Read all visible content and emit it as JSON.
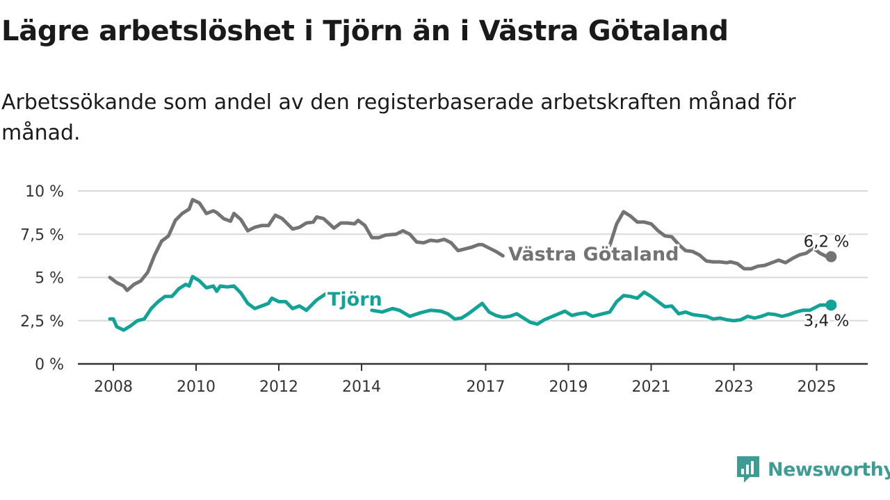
{
  "colors": {
    "regional": "#737373",
    "local": "#13a396",
    "grid": "#d9d9d9",
    "axis": "#333333",
    "brand": "#3f9c94"
  },
  "brand": {
    "name": "Newsworthy",
    "icon": "newsworthy-logo-icon"
  },
  "chart_data": {
    "type": "line",
    "title": "Lägre arbetslöshet i Tjörn än i Västra Götaland",
    "subtitle": "Arbetssökande som andel av den registerbaserade arbetskraften månad för månad.",
    "ylim": [
      0,
      10
    ],
    "xlim": [
      "2008-01",
      "2025-12"
    ],
    "yticks": [
      {
        "value": 0,
        "label": "0 %"
      },
      {
        "value": 2.5,
        "label": "2,5 %"
      },
      {
        "value": 5,
        "label": "5 %"
      },
      {
        "value": 7.5,
        "label": "7,5 %"
      },
      {
        "value": 10,
        "label": "10 %"
      }
    ],
    "xticks": [
      {
        "value": "2008-01",
        "label": "2008"
      },
      {
        "value": "2010-01",
        "label": "2010"
      },
      {
        "value": "2012-01",
        "label": "2012"
      },
      {
        "value": "2014-01",
        "label": "2014"
      },
      {
        "value": "2017-01",
        "label": "2017"
      },
      {
        "value": "2019-01",
        "label": "2019"
      },
      {
        "value": "2021-01",
        "label": "2021"
      },
      {
        "value": "2023-01",
        "label": "2023"
      },
      {
        "value": "2025-01",
        "label": "2025"
      }
    ],
    "grid": "horizontal",
    "series": [
      {
        "name": "Västra Götaland",
        "key": "regional",
        "end_label": "6,2 %",
        "end_value": 6.2,
        "points": [
          [
            "2008-01",
            5.0
          ],
          [
            "2008-03",
            4.7
          ],
          [
            "2008-05",
            4.5
          ],
          [
            "2008-06",
            4.25
          ],
          [
            "2008-08",
            4.6
          ],
          [
            "2008-10",
            4.8
          ],
          [
            "2008-12",
            5.3
          ],
          [
            "2009-02",
            6.3
          ],
          [
            "2009-04",
            7.1
          ],
          [
            "2009-06",
            7.4
          ],
          [
            "2009-08",
            8.3
          ],
          [
            "2009-10",
            8.7
          ],
          [
            "2009-12",
            8.95
          ],
          [
            "2010-01",
            9.5
          ],
          [
            "2010-03",
            9.3
          ],
          [
            "2010-05",
            8.7
          ],
          [
            "2010-07",
            8.85
          ],
          [
            "2010-08",
            8.75
          ],
          [
            "2010-10",
            8.4
          ],
          [
            "2010-12",
            8.25
          ],
          [
            "2011-01",
            8.7
          ],
          [
            "2011-03",
            8.35
          ],
          [
            "2011-05",
            7.7
          ],
          [
            "2011-07",
            7.9
          ],
          [
            "2011-09",
            8.0
          ],
          [
            "2011-11",
            8.0
          ],
          [
            "2012-01",
            8.6
          ],
          [
            "2012-03",
            8.4
          ],
          [
            "2012-06",
            7.8
          ],
          [
            "2012-08",
            7.9
          ],
          [
            "2012-10",
            8.15
          ],
          [
            "2012-12",
            8.2
          ],
          [
            "2013-01",
            8.5
          ],
          [
            "2013-03",
            8.4
          ],
          [
            "2013-06",
            7.85
          ],
          [
            "2013-08",
            8.15
          ],
          [
            "2013-10",
            8.15
          ],
          [
            "2013-12",
            8.1
          ],
          [
            "2014-01",
            8.3
          ],
          [
            "2014-03",
            8.0
          ],
          [
            "2014-05",
            7.3
          ],
          [
            "2014-07",
            7.3
          ],
          [
            "2014-09",
            7.45
          ],
          [
            "2014-12",
            7.5
          ],
          [
            "2015-02",
            7.7
          ],
          [
            "2015-04",
            7.5
          ],
          [
            "2015-06",
            7.05
          ],
          [
            "2015-08",
            7.0
          ],
          [
            "2015-10",
            7.15
          ],
          [
            "2015-12",
            7.1
          ],
          [
            "2016-02",
            7.2
          ],
          [
            "2016-04",
            7.0
          ],
          [
            "2016-06",
            6.55
          ],
          [
            "2016-08",
            6.65
          ],
          [
            "2016-10",
            6.75
          ],
          [
            "2016-12",
            6.9
          ],
          [
            "2017-01",
            6.9
          ],
          [
            "2017-03",
            6.7
          ],
          [
            "2017-05",
            6.5
          ],
          [
            "2017-07",
            6.25
          ],
          null,
          [
            "2020-02",
            6.85
          ],
          [
            "2020-04",
            8.1
          ],
          [
            "2020-06",
            8.8
          ],
          [
            "2020-08",
            8.55
          ],
          [
            "2020-10",
            8.2
          ],
          [
            "2020-12",
            8.2
          ],
          [
            "2021-02",
            8.1
          ],
          [
            "2021-04",
            7.7
          ],
          [
            "2021-06",
            7.4
          ],
          [
            "2021-08",
            7.35
          ],
          [
            "2021-10",
            6.9
          ],
          [
            "2021-12",
            6.55
          ],
          [
            "2022-02",
            6.5
          ],
          [
            "2022-04",
            6.3
          ],
          [
            "2022-06",
            5.95
          ],
          [
            "2022-08",
            5.9
          ],
          [
            "2022-10",
            5.9
          ],
          [
            "2022-12",
            5.85
          ],
          [
            "2023-01",
            5.9
          ],
          [
            "2023-03",
            5.8
          ],
          [
            "2023-05",
            5.5
          ],
          [
            "2023-07",
            5.5
          ],
          [
            "2023-09",
            5.65
          ],
          [
            "2023-11",
            5.7
          ],
          [
            "2024-01",
            5.85
          ],
          [
            "2024-03",
            6.0
          ],
          [
            "2024-05",
            5.85
          ],
          [
            "2024-07",
            6.1
          ],
          [
            "2024-09",
            6.3
          ],
          [
            "2024-11",
            6.4
          ],
          [
            "2025-01",
            6.7
          ],
          [
            "2025-03",
            6.4
          ],
          [
            "2025-05",
            6.2
          ]
        ]
      },
      {
        "name": "Tjörn",
        "key": "local",
        "end_label": "3,4 %",
        "end_value": 3.4,
        "points": [
          [
            "2008-01",
            2.6
          ],
          [
            "2008-02",
            2.6
          ],
          [
            "2008-03",
            2.15
          ],
          [
            "2008-05",
            1.95
          ],
          [
            "2008-07",
            2.2
          ],
          [
            "2008-09",
            2.5
          ],
          [
            "2008-11",
            2.6
          ],
          [
            "2009-01",
            3.2
          ],
          [
            "2009-03",
            3.6
          ],
          [
            "2009-05",
            3.9
          ],
          [
            "2009-07",
            3.9
          ],
          [
            "2009-09",
            4.35
          ],
          [
            "2009-11",
            4.6
          ],
          [
            "2009-12",
            4.5
          ],
          [
            "2010-01",
            5.05
          ],
          [
            "2010-03",
            4.8
          ],
          [
            "2010-05",
            4.4
          ],
          [
            "2010-07",
            4.5
          ],
          [
            "2010-08",
            4.2
          ],
          [
            "2010-09",
            4.5
          ],
          [
            "2010-11",
            4.45
          ],
          [
            "2011-01",
            4.5
          ],
          [
            "2011-03",
            4.1
          ],
          [
            "2011-05",
            3.5
          ],
          [
            "2011-07",
            3.2
          ],
          [
            "2011-09",
            3.35
          ],
          [
            "2011-11",
            3.5
          ],
          [
            "2011-12",
            3.8
          ],
          [
            "2012-02",
            3.6
          ],
          [
            "2012-04",
            3.6
          ],
          [
            "2012-06",
            3.2
          ],
          [
            "2012-08",
            3.35
          ],
          [
            "2012-10",
            3.1
          ],
          [
            "2013-01",
            3.7
          ],
          [
            "2013-04",
            4.1
          ],
          null,
          [
            "2014-05",
            3.1
          ],
          [
            "2014-08",
            3.0
          ],
          [
            "2014-11",
            3.2
          ],
          [
            "2015-01",
            3.1
          ],
          [
            "2015-04",
            2.75
          ],
          [
            "2015-07",
            2.95
          ],
          [
            "2015-10",
            3.1
          ],
          [
            "2016-01",
            3.05
          ],
          [
            "2016-03",
            2.9
          ],
          [
            "2016-05",
            2.6
          ],
          [
            "2016-07",
            2.65
          ],
          [
            "2016-09",
            2.9
          ],
          [
            "2016-12",
            3.35
          ],
          [
            "2017-01",
            3.5
          ],
          [
            "2017-03",
            3.0
          ],
          [
            "2017-05",
            2.8
          ],
          [
            "2017-07",
            2.7
          ],
          [
            "2017-09",
            2.75
          ],
          [
            "2017-11",
            2.9
          ],
          [
            "2018-01",
            2.65
          ],
          [
            "2018-03",
            2.4
          ],
          [
            "2018-05",
            2.3
          ],
          [
            "2018-07",
            2.55
          ],
          [
            "2018-10",
            2.8
          ],
          [
            "2019-01",
            3.05
          ],
          [
            "2019-03",
            2.8
          ],
          [
            "2019-05",
            2.9
          ],
          [
            "2019-07",
            2.95
          ],
          [
            "2019-09",
            2.75
          ],
          [
            "2019-12",
            2.9
          ],
          [
            "2020-02",
            3.0
          ],
          [
            "2020-04",
            3.6
          ],
          [
            "2020-06",
            3.95
          ],
          [
            "2020-08",
            3.9
          ],
          [
            "2020-10",
            3.8
          ],
          [
            "2020-12",
            4.15
          ],
          [
            "2021-02",
            3.9
          ],
          [
            "2021-04",
            3.6
          ],
          [
            "2021-06",
            3.3
          ],
          [
            "2021-08",
            3.35
          ],
          [
            "2021-10",
            2.9
          ],
          [
            "2021-12",
            3.0
          ],
          [
            "2022-02",
            2.85
          ],
          [
            "2022-04",
            2.8
          ],
          [
            "2022-06",
            2.75
          ],
          [
            "2022-08",
            2.6
          ],
          [
            "2022-10",
            2.65
          ],
          [
            "2022-12",
            2.55
          ],
          [
            "2023-02",
            2.5
          ],
          [
            "2023-04",
            2.55
          ],
          [
            "2023-06",
            2.75
          ],
          [
            "2023-08",
            2.65
          ],
          [
            "2023-10",
            2.75
          ],
          [
            "2023-12",
            2.9
          ],
          [
            "2024-02",
            2.85
          ],
          [
            "2024-04",
            2.75
          ],
          [
            "2024-06",
            2.85
          ],
          [
            "2024-08",
            3.0
          ],
          [
            "2024-10",
            3.1
          ],
          [
            "2024-12",
            3.1
          ],
          [
            "2025-01",
            3.2
          ],
          [
            "2025-03",
            3.4
          ],
          [
            "2025-05",
            3.4
          ]
        ]
      }
    ]
  }
}
